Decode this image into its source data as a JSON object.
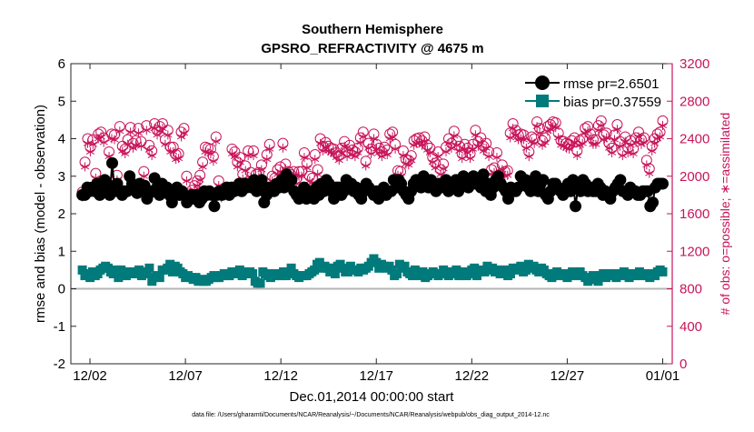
{
  "chart_data": {
    "type": "line",
    "title": "Southern Hemisphere",
    "subtitle": "GPSRO_REFRACTIVITY @ 4675 m",
    "xlabel": "Dec.01,2014 00:00:00 start",
    "ylabel_left": "rmse and bias (model - observation)",
    "ylabel_right": "# of obs: o=possible; ∗=assimilated",
    "footnote": "data file: /Users/gharamti/Documents/NCAR/Reanalysis/~/Documents/NCAR/Reanalysis/webpub/obs_diag_output_2014-12.nc",
    "xlim": [
      0,
      31.5
    ],
    "ylim_left": [
      -2,
      6
    ],
    "ylim_right": [
      0,
      3200
    ],
    "x_ticks": [
      1,
      6,
      11,
      16,
      21,
      26,
      31
    ],
    "x_tick_labels": [
      "12/02",
      "12/07",
      "12/12",
      "12/17",
      "12/22",
      "12/27",
      "01/01"
    ],
    "y_left_ticks": [
      -2,
      -1,
      0,
      1,
      2,
      3,
      4,
      5,
      6
    ],
    "y_right_ticks": [
      0,
      400,
      800,
      1200,
      1600,
      2000,
      2400,
      2800,
      3200
    ],
    "legend_location": "top-right",
    "colors": {
      "rmse": "#000000",
      "bias": "#007a7a",
      "obs": "#c8145a",
      "zero_line": "#b4b4b4"
    },
    "series": [
      {
        "name": "rmse pr=2.6501",
        "marker": "filled-circle",
        "values": [
          2.5,
          2.5,
          2.7,
          2.6,
          2.7,
          2.6,
          2.8,
          2.5,
          2.7,
          2.9,
          2.8,
          2.5,
          3.35,
          2.6,
          2.8,
          2.6,
          2.5,
          2.6,
          2.6,
          3.0,
          2.8,
          2.65,
          2.55,
          2.8,
          2.6,
          2.75,
          2.4,
          2.55,
          2.6,
          2.95,
          2.7,
          2.5,
          2.8,
          2.6,
          2.7,
          2.5,
          2.3,
          2.6,
          2.7,
          2.5,
          2.6,
          2.5,
          2.3,
          2.4,
          2.5,
          2.4,
          2.5,
          2.3,
          2.4,
          2.6,
          2.5,
          2.6,
          2.5,
          2.2,
          2.5,
          2.6,
          2.5,
          2.6,
          2.7,
          2.5,
          2.7,
          2.6,
          2.7,
          2.8,
          2.6,
          2.8,
          2.7,
          2.8,
          2.7,
          2.9,
          2.6,
          2.8,
          2.9,
          2.3,
          2.5,
          2.7,
          2.7,
          2.6,
          2.8,
          2.7,
          2.9,
          2.7,
          3.05,
          2.8,
          2.9,
          2.6,
          2.5,
          2.4,
          2.55,
          2.7,
          2.4,
          2.5,
          2.6,
          2.4,
          2.7,
          2.5,
          2.8,
          2.6,
          2.9,
          2.8,
          2.6,
          2.4,
          2.7,
          2.7,
          2.5,
          2.6,
          2.9,
          2.7,
          2.8,
          2.6,
          2.7,
          2.5,
          2.4,
          2.6,
          2.8,
          2.7,
          2.6,
          2.5,
          2.6,
          2.4,
          2.6,
          2.7,
          2.5,
          2.6,
          2.6,
          2.9,
          2.7,
          2.9,
          2.8,
          2.6,
          2.5,
          2.4,
          2.6,
          2.8,
          2.9,
          2.8,
          2.7,
          3.0,
          2.8,
          2.7,
          2.9,
          2.8,
          2.6,
          2.8,
          2.7,
          2.8,
          2.9,
          2.6,
          2.8,
          2.7,
          2.9,
          2.6,
          2.8,
          3.0,
          2.9,
          2.7,
          2.8,
          3.0,
          2.8,
          2.9,
          2.7,
          3.05,
          2.6,
          2.8,
          2.5,
          2.7,
          2.9,
          3.0,
          2.8,
          2.7,
          2.6,
          2.4,
          2.7,
          2.6,
          2.6,
          2.7,
          3.0,
          2.8,
          2.9,
          2.7,
          2.6,
          2.8,
          3.0,
          2.6,
          2.8,
          2.9,
          2.5,
          2.4,
          2.6,
          2.8,
          2.8,
          2.7,
          2.6,
          2.5,
          2.6,
          2.8,
          2.6,
          2.9,
          2.2,
          2.7,
          2.6,
          2.9,
          2.8,
          2.6,
          2.7,
          2.6,
          2.6,
          2.8,
          2.7,
          2.5,
          2.6,
          2.5,
          2.4,
          2.6,
          2.7,
          2.8,
          2.9,
          2.6,
          2.6,
          2.5,
          2.7,
          2.6,
          2.6,
          2.5,
          2.5,
          2.6,
          2.6,
          2.6,
          2.2,
          2.3,
          2.7,
          2.8,
          2.8,
          2.8
        ]
      },
      {
        "name": "bias pr=0.37559",
        "marker": "filled-square",
        "values": [
          0.5,
          0.35,
          0.4,
          0.3,
          0.45,
          0.35,
          0.4,
          0.5,
          0.55,
          0.6,
          0.55,
          0.45,
          0.4,
          0.5,
          0.3,
          0.5,
          0.45,
          0.35,
          0.4,
          0.45,
          0.45,
          0.4,
          0.5,
          0.35,
          0.45,
          0.4,
          0.55,
          0.2,
          0.3,
          0.35,
          0.3,
          0.5,
          0.5,
          0.55,
          0.65,
          0.45,
          0.6,
          0.55,
          0.45,
          0.4,
          0.3,
          0.35,
          0.3,
          0.25,
          0.3,
          0.2,
          0.25,
          0.2,
          0.2,
          0.25,
          0.3,
          0.35,
          0.3,
          0.3,
          0.35,
          0.4,
          0.35,
          0.35,
          0.45,
          0.4,
          0.45,
          0.5,
          0.35,
          0.45,
          0.4,
          0.45,
          0.4,
          0.2,
          0.15,
          0.15,
          0.45,
          0.4,
          0.35,
          0.3,
          0.4,
          0.35,
          0.4,
          0.35,
          0.45,
          0.35,
          0.45,
          0.55,
          0.4,
          0.35,
          0.3,
          0.35,
          0.35,
          0.35,
          0.4,
          0.45,
          0.5,
          0.65,
          0.7,
          0.55,
          0.6,
          0.55,
          0.45,
          0.55,
          0.4,
          0.6,
          0.65,
          0.55,
          0.45,
          0.45,
          0.6,
          0.5,
          0.5,
          0.45,
          0.55,
          0.5,
          0.55,
          0.6,
          0.7,
          0.8,
          0.7,
          0.55,
          0.65,
          0.6,
          0.55,
          0.6,
          0.5,
          0.35,
          0.4,
          0.65,
          0.55,
          0.6,
          0.45,
          0.4,
          0.35,
          0.5,
          0.4,
          0.35,
          0.45,
          0.3,
          0.35,
          0.4,
          0.45,
          0.4,
          0.35,
          0.4,
          0.5,
          0.45,
          0.35,
          0.45,
          0.4,
          0.5,
          0.35,
          0.4,
          0.45,
          0.35,
          0.4,
          0.5,
          0.55,
          0.35,
          0.45,
          0.5,
          0.45,
          0.6,
          0.5,
          0.55,
          0.45,
          0.5,
          0.4,
          0.45,
          0.5,
          0.35,
          0.4,
          0.55,
          0.5,
          0.55,
          0.6,
          0.45,
          0.5,
          0.65,
          0.55,
          0.6,
          0.5,
          0.45,
          0.55,
          0.5,
          0.4,
          0.35,
          0.3,
          0.4,
          0.45,
          0.35,
          0.4,
          0.35,
          0.3,
          0.4,
          0.45,
          0.35,
          0.4,
          0.45,
          0.35,
          0.3,
          0.2,
          0.25,
          0.35,
          0.3,
          0.2,
          0.35,
          0.4,
          0.3,
          0.35,
          0.4,
          0.4,
          0.3,
          0.35,
          0.4,
          0.45,
          0.35,
          0.3,
          0.4,
          0.35,
          0.4,
          0.45,
          0.35,
          0.4,
          0.35,
          0.3,
          0.4,
          0.35,
          0.45,
          0.5,
          0.45
        ]
      },
      {
        "name": "possible",
        "marker": "open-circle",
        "axis": "right",
        "values": [
          1830,
          2150,
          2400,
          2310,
          2390,
          2030,
          2450,
          2470,
          2410,
          1890,
          2260,
          2450,
          2440,
          2010,
          2530,
          2320,
          2290,
          2390,
          2520,
          2350,
          2380,
          2510,
          2370,
          2050,
          2540,
          2330,
          2270,
          2560,
          2490,
          2530,
          2560,
          2390,
          2490,
          2310,
          2310,
          2230,
          2240,
          2470,
          2510,
          2000,
          1810,
          1850,
          1900,
          1950,
          2010,
          2150,
          2310,
          2300,
          2290,
          2210,
          2420,
          1950,
          1820,
          1850,
          1850,
          1870,
          2290,
          2260,
          2150,
          2200,
          2020,
          2110,
          2270,
          2040,
          2270,
          2020,
          2040,
          2120,
          1890,
          2230,
          2340,
          2000,
          1980,
          2070,
          2100,
          2350,
          2130,
          2050,
          2020,
          2050,
          1970,
          2050,
          2050,
          2250,
          2140,
          2000,
          1980,
          2230,
          2070,
          2400,
          2320,
          2360,
          2320,
          2300,
          2290,
          2250,
          2220,
          2300,
          2370,
          2260,
          2330,
          2280,
          2260,
          2300,
          2410,
          2470,
          2160,
          2350,
          2290,
          2450,
          2340,
          2300,
          2260,
          2310,
          2280,
          2450,
          2470,
          2340,
          2060,
          2050,
          2270,
          2180,
          2170,
          2220,
          2380,
          2400,
          2410,
          2380,
          2420,
          2330,
          2300,
          2200,
          2140,
          2260,
          2070,
          2130,
          2310,
          2400,
          2350,
          2480,
          2380,
          2320,
          2240,
          2340,
          2300,
          2240,
          2340,
          2490,
          2370,
          2410,
          2320,
          2350,
          2260,
          2070,
          2090,
          2250,
          2020,
          2120,
          2050,
          2060,
          2460,
          2560,
          2490,
          2440,
          2450,
          2440,
          2350,
          2260,
          2420,
          2400,
          2580,
          2510,
          2380,
          2410,
          2530,
          2550,
          2580,
          2570,
          2460,
          2380,
          2370,
          2350,
          2340,
          2380,
          2410,
          2270,
          2380,
          2400,
          2510,
          2530,
          2450,
          2390,
          2390,
          2540,
          2590,
          2440,
          2460,
          2350,
          2300,
          2440,
          2550,
          2370,
          2270,
          2420,
          2300,
          2380,
          2290,
          2410,
          2470,
          2390,
          2410,
          2170,
          2080,
          2320,
          2400,
          2450,
          2470,
          2590
        ]
      },
      {
        "name": "assimilated",
        "marker": "asterisk",
        "axis": "right",
        "values": [
          1780,
          2100,
          2350,
          2260,
          2340,
          1980,
          2400,
          2420,
          2360,
          1840,
          2210,
          2400,
          2390,
          1960,
          2480,
          2270,
          2240,
          2340,
          2470,
          2300,
          2330,
          2460,
          2320,
          2000,
          2490,
          2280,
          2220,
          2510,
          2440,
          2480,
          2510,
          2340,
          2440,
          2260,
          2260,
          2180,
          2190,
          2420,
          2460,
          1950,
          1760,
          1800,
          1850,
          1900,
          1960,
          2100,
          2260,
          2250,
          2240,
          2160,
          2370,
          1900,
          1770,
          1800,
          1800,
          1820,
          2240,
          2210,
          2100,
          2150,
          1970,
          2060,
          2220,
          1990,
          2220,
          1970,
          1990,
          2070,
          1840,
          2180,
          2290,
          1950,
          1930,
          2020,
          2050,
          2300,
          2080,
          2000,
          1970,
          2000,
          1920,
          2000,
          2000,
          2200,
          2090,
          1950,
          1930,
          2180,
          2020,
          2350,
          2270,
          2310,
          2270,
          2250,
          2240,
          2200,
          2170,
          2250,
          2320,
          2210,
          2280,
          2230,
          2210,
          2250,
          2360,
          2420,
          2110,
          2300,
          2240,
          2400,
          2290,
          2250,
          2210,
          2260,
          2230,
          2400,
          2420,
          2290,
          2010,
          2000,
          2220,
          2130,
          2120,
          2170,
          2330,
          2350,
          2360,
          2330,
          2370,
          2280,
          2250,
          2150,
          2090,
          2210,
          2020,
          2080,
          2260,
          2350,
          2300,
          2430,
          2330,
          2270,
          2190,
          2290,
          2250,
          2190,
          2290,
          2440,
          2320,
          2360,
          2270,
          2300,
          2210,
          2020,
          2040,
          2200,
          1970,
          2070,
          2000,
          2010,
          2410,
          2510,
          2440,
          2390,
          2400,
          2390,
          2300,
          2210,
          2370,
          2350,
          2530,
          2460,
          2330,
          2360,
          2480,
          2500,
          2530,
          2520,
          2410,
          2330,
          2320,
          2300,
          2290,
          2330,
          2360,
          2220,
          2330,
          2350,
          2460,
          2480,
          2400,
          2340,
          2340,
          2490,
          2540,
          2390,
          2410,
          2300,
          2250,
          2390,
          2500,
          2320,
          2220,
          2370,
          2250,
          2330,
          2240,
          2360,
          2420,
          2340,
          2360,
          2120,
          2030,
          2270,
          2350,
          2400,
          2420,
          2540
        ]
      }
    ]
  },
  "legend": {
    "rmse_label": "rmse pr=2.6501",
    "bias_label": "bias pr=0.37559"
  }
}
